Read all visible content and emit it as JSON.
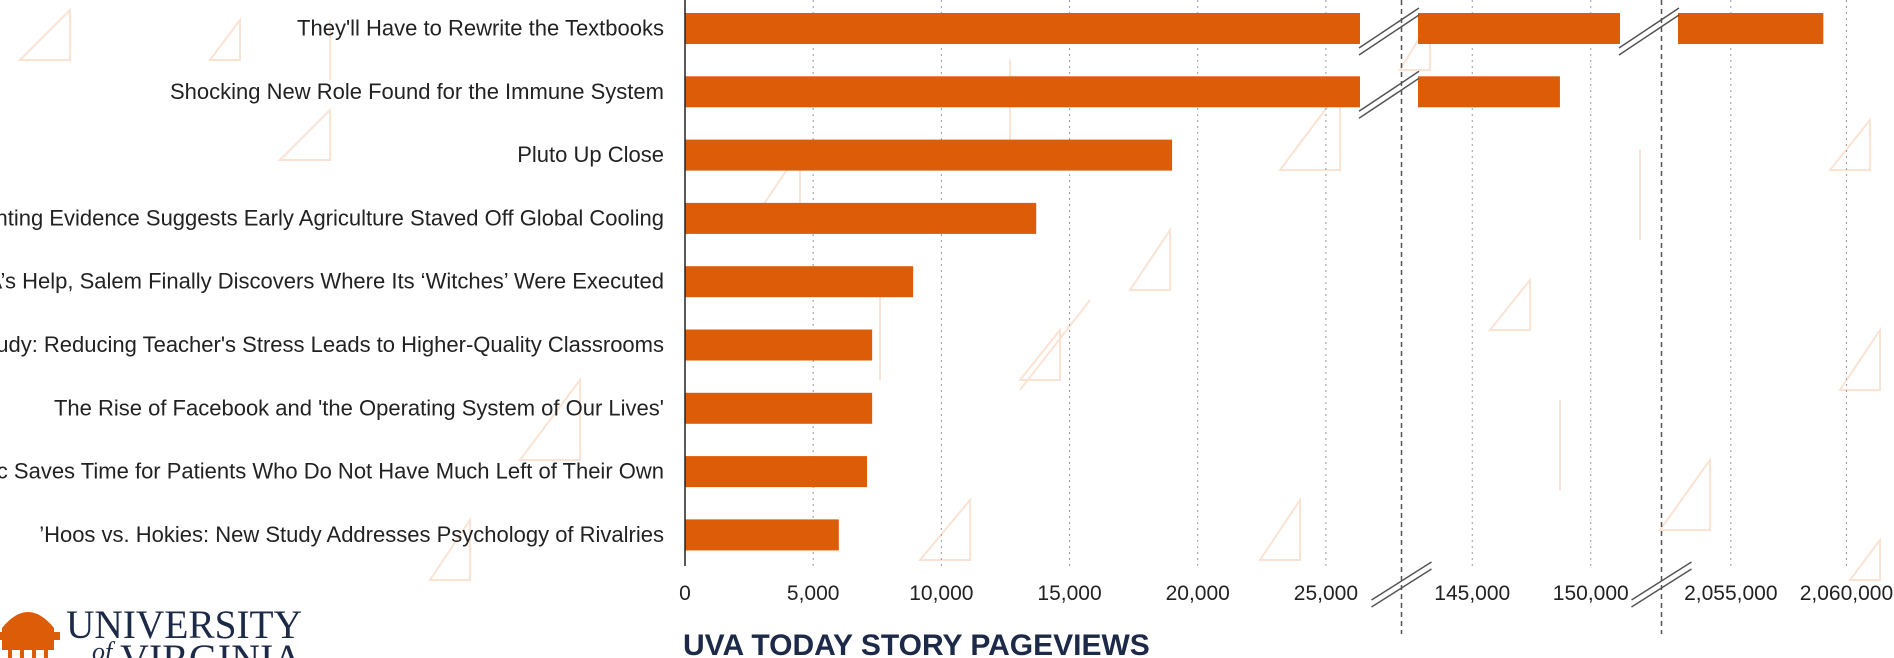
{
  "chart_data": {
    "type": "bar",
    "orientation": "horizontal",
    "title": "UVA TODAY STORY PAGEVIEWS",
    "xlabel": "",
    "ylabel": "",
    "axis_breaks": [
      [
        27500,
        142500
      ],
      [
        152500,
        2052500
      ]
    ],
    "axis_segments": [
      {
        "range": [
          0,
          27500
        ],
        "ticks": [
          0,
          5000,
          10000,
          15000,
          20000,
          25000
        ],
        "tick_labels": [
          "0",
          "5,000",
          "10,000",
          "15,000",
          "20,000",
          "25,000"
        ]
      },
      {
        "range": [
          142500,
          152500
        ],
        "ticks": [
          145000,
          150000
        ],
        "tick_labels": [
          "145,000",
          "150,000"
        ]
      },
      {
        "range": [
          2052500,
          2060500
        ],
        "ticks": [
          2055000,
          2060000
        ],
        "tick_labels": [
          "2,055,000",
          "2,060,000"
        ]
      }
    ],
    "grid": "vertical dotted",
    "bar_color": "#dd5c08",
    "categories": [
      "They'll Have to Rewrite the Textbooks",
      "Shocking New Role Found for the Immune System",
      "Pluto Up Close",
      "Mounting Evidence Suggests Early Agriculture Staved Off Global Cooling",
      "With UVA’s Help, Salem Finally Discovers Where Its ‘Witches’ Were Executed",
      "Curry Study: Reducing Teacher's Stress Leads to Higher-Quality Classrooms",
      "The Rise of Facebook and 'the Operating System of Our Lives'",
      "Cancer Doc Saves Time for Patients Who Do Not Have Much Left of Their Own",
      "’Hoos vs. Hokies: New Study Addresses Psychology of Rivalries"
    ],
    "values": [
      2059000,
      148700,
      19000,
      13700,
      8900,
      7300,
      7300,
      7100,
      6000
    ]
  },
  "logo": {
    "line1": "UNIVERSITY",
    "line2_of": "of",
    "line2": "VIRGINIA",
    "logo_name": "rotunda-icon"
  }
}
